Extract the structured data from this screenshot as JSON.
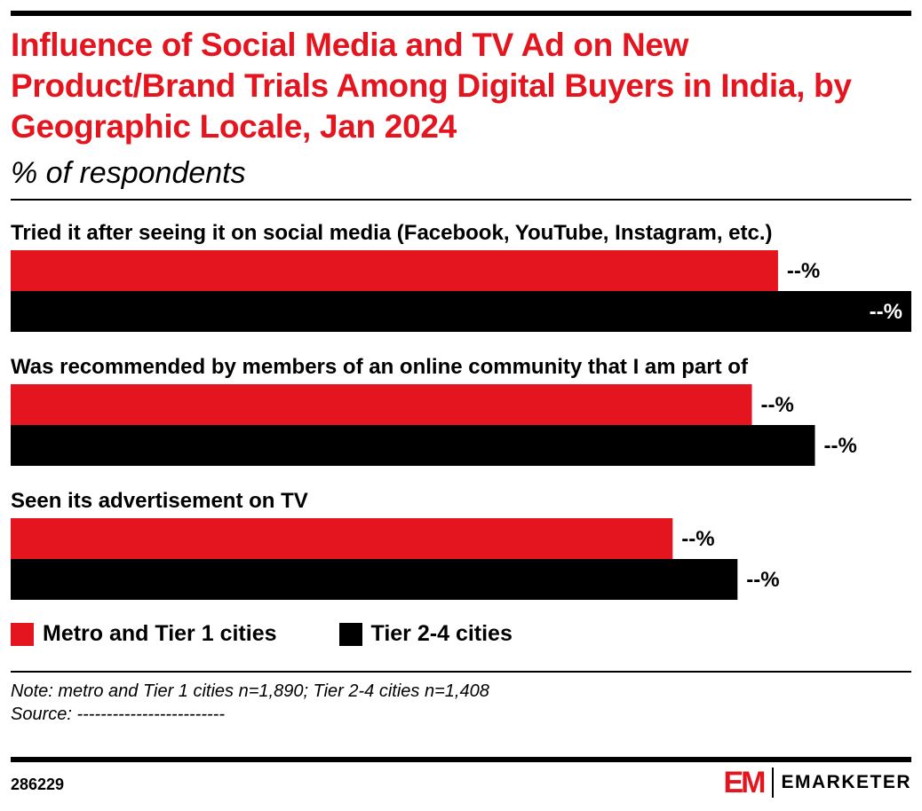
{
  "title": "Influence of Social Media and TV Ad on New Product/Brand Trials Among Digital Buyers in India, by Geographic Locale, Jan 2024",
  "subtitle": "% of respondents",
  "colors": {
    "metro": "#e4151f",
    "tier": "#000000",
    "accent": "#e4151f"
  },
  "chart_data": {
    "type": "bar",
    "orientation": "horizontal",
    "categories": [
      "Tried it after seeing it on social media (Facebook, YouTube, Instagram, etc.)",
      "Was recommended by members of an online community that I am part of",
      "Seen its advertisement on TV"
    ],
    "series": [
      {
        "name": "Metro and Tier 1 cities",
        "values": [
          85.2,
          82.3,
          73.5
        ],
        "labels": [
          "--%",
          "--%",
          "--%"
        ]
      },
      {
        "name": "Tier 2-4 cities",
        "values": [
          100,
          89.3,
          80.7
        ],
        "labels": [
          "--%",
          "--%",
          "--%"
        ]
      }
    ],
    "xlim": [
      0,
      100
    ],
    "grid": false,
    "legend_position": "bottom-left"
  },
  "note": "Note: metro and Tier 1 cities n=1,890; Tier 2-4 cities n=1,408",
  "source": "Source: -------------------------",
  "footer": {
    "id": "286229",
    "logo_mark": "EM",
    "logo_text": "EMARKETER"
  }
}
